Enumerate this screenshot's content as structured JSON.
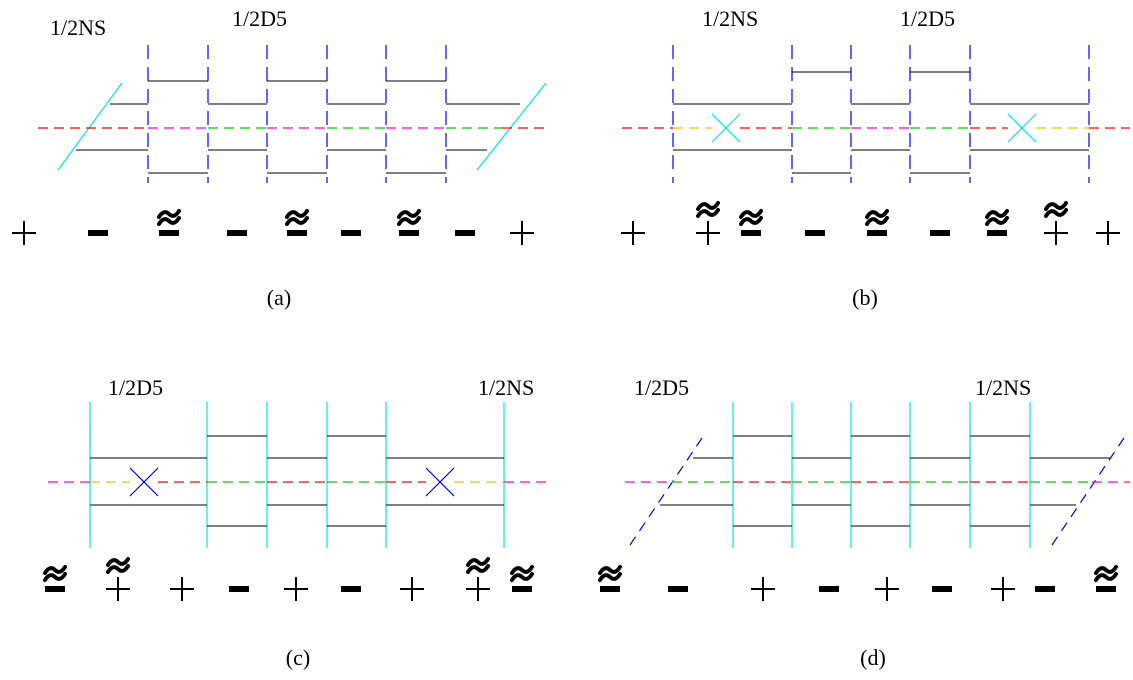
{
  "colors": {
    "black": "#000000",
    "blue": "#0000ee",
    "cyan": "#00e5e5",
    "red": "#ff0000",
    "green": "#00cc00",
    "magenta": "#ee00ee",
    "yellow": "#e8c800"
  },
  "panels": [
    {
      "id": "a",
      "caption": "(a)",
      "labels": [
        "1/2NS",
        "1/2D5"
      ],
      "signs": [
        "+",
        "-",
        "~-",
        "-",
        "~-",
        "-",
        "~-",
        "-",
        "+"
      ]
    },
    {
      "id": "b",
      "caption": "(b)",
      "labels": [
        "1/2NS",
        "1/2D5"
      ],
      "signs": [
        "+",
        "~+",
        "~-",
        "-",
        "~-",
        "-",
        "~-",
        "~+",
        "+"
      ]
    },
    {
      "id": "c",
      "caption": "(c)",
      "labels": [
        "1/2D5",
        "1/2NS"
      ],
      "signs": [
        "~-",
        "~+",
        "+",
        "-",
        "+",
        "-",
        "+",
        "~+",
        "~-"
      ]
    },
    {
      "id": "d",
      "caption": "(d)",
      "labels": [
        "1/2D5",
        "1/2NS"
      ],
      "signs": [
        "~-",
        "-",
        "+",
        "-",
        "+",
        "-",
        "+",
        "-",
        "~-"
      ]
    }
  ]
}
